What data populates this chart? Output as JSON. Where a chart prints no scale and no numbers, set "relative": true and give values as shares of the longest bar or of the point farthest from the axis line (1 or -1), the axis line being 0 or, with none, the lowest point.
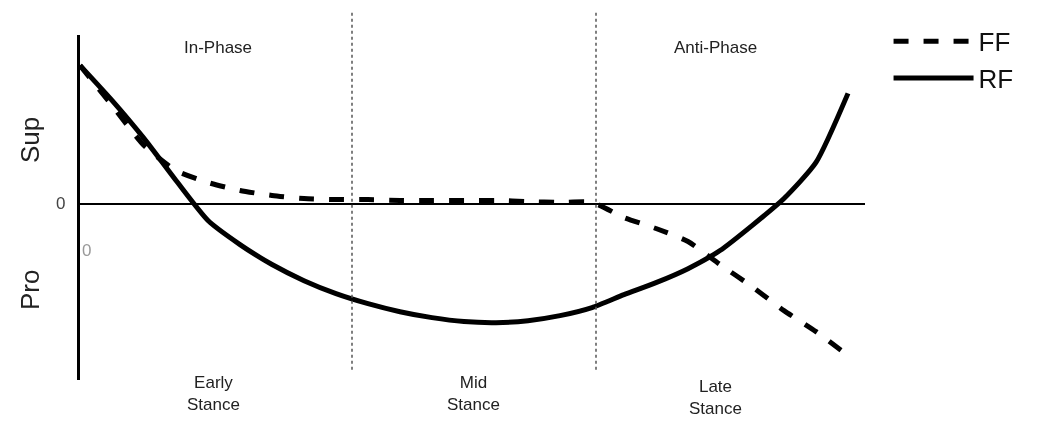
{
  "chart_data": {
    "type": "line",
    "relative": true,
    "legend": "top right",
    "categories": [
      null,
      null,
      null,
      null,
      null,
      null,
      null,
      null,
      null,
      null,
      null,
      null,
      null,
      null,
      null,
      null,
      null,
      null,
      null,
      null,
      null,
      null,
      null,
      null,
      null
    ],
    "series": [
      {
        "name": "FF",
        "color": "#000000",
        "line_style": "dashed",
        "values": [
          0.908,
          0.645,
          0.382,
          0.217,
          0.138,
          0.086,
          0.053,
          0.033,
          0.026,
          0.026,
          0.02,
          0.02,
          0.02,
          0.02,
          0.013,
          0.007,
          0.007,
          -0.092,
          -0.164,
          -0.25,
          -0.401,
          -0.546,
          -0.704,
          -0.842,
          -1
        ]
      },
      {
        "name": "RF",
        "color": "#000000",
        "line_style": "solid",
        "values": [
          0.908,
          0.678,
          0.428,
          0.151,
          -0.112,
          -0.27,
          -0.401,
          -0.507,
          -0.592,
          -0.658,
          -0.711,
          -0.75,
          -0.776,
          -0.783,
          -0.77,
          -0.737,
          -0.684,
          -0.599,
          -0.52,
          -0.428,
          -0.309,
          -0.145,
          0.033,
          0.27,
          0.724
        ]
      }
    ],
    "annotations": [
      "In-Phase",
      "Anti-Phase",
      "Early\nStance",
      "Mid\nStance",
      "Late\nStance",
      "Sup",
      "Pro",
      "0",
      "0"
    ]
  }
}
